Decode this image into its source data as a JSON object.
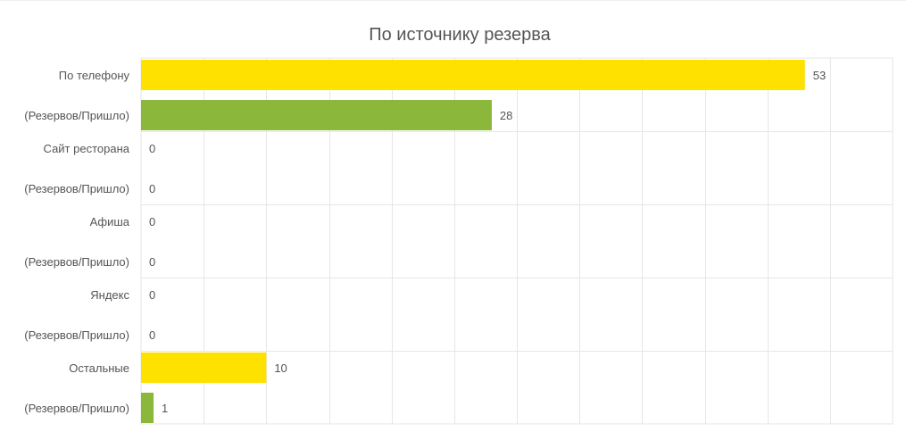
{
  "chart_data": {
    "type": "bar",
    "orientation": "horizontal",
    "title": "По источнику резерва",
    "categories": [
      "По телефону",
      "Сайт ресторана",
      "Афиша",
      "Яндекс",
      "Остальные"
    ],
    "row_sublabel": "(Резервов/Пришло)",
    "series": [
      {
        "values": [
          53,
          0,
          0,
          0,
          10
        ],
        "color": "#ffe100"
      },
      {
        "values": [
          28,
          0,
          0,
          0,
          1
        ],
        "color": "#8bb73b"
      }
    ],
    "xlim": [
      0,
      60
    ],
    "grid": true,
    "legend": "none"
  },
  "colors": {
    "grid": "#e6e6e6",
    "text": "#555555",
    "title": "#555555"
  }
}
